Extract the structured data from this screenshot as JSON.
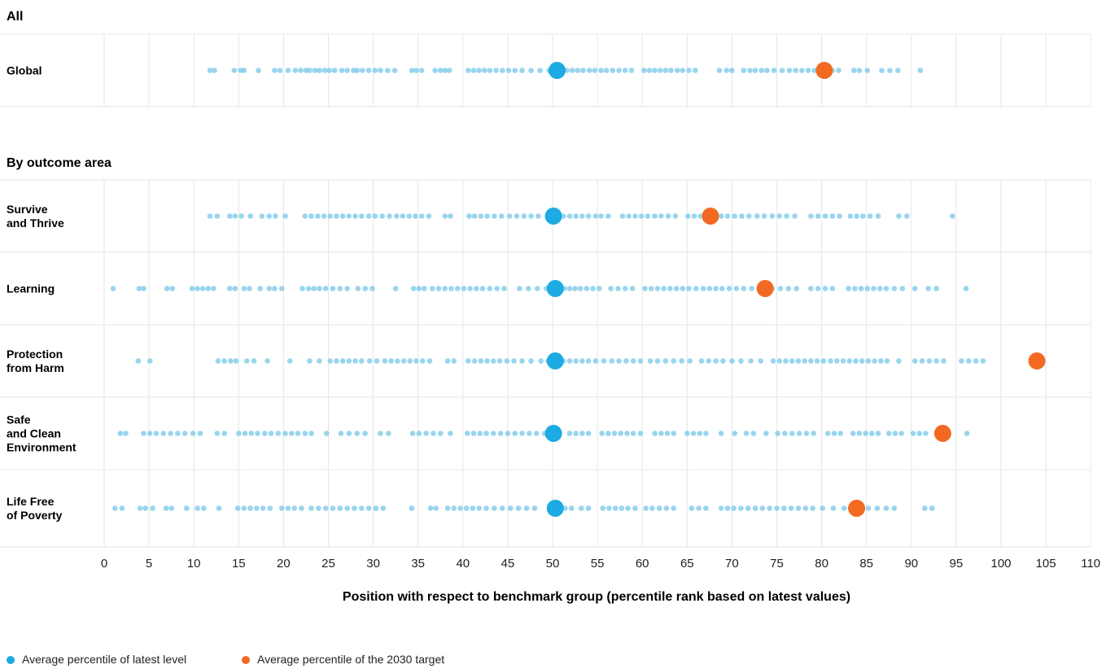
{
  "chart_data": {
    "type": "scatter",
    "xlabel": "Position with respect to benchmark group (percentile rank based on latest values)",
    "xlim": [
      0,
      110
    ],
    "x_ticks": [
      0,
      5,
      10,
      15,
      20,
      25,
      30,
      35,
      40,
      45,
      50,
      55,
      60,
      65,
      70,
      75,
      80,
      85,
      90,
      95,
      100,
      105,
      110
    ],
    "x_tick_labels": [
      "0",
      "5",
      "10",
      "15",
      "20",
      "25",
      "30",
      "35",
      "40",
      "45",
      "50",
      "55",
      "60",
      "65",
      "70",
      "75",
      "80",
      "85",
      "90",
      "95",
      "100",
      "105",
      "110"
    ],
    "grid": "vertical",
    "legend_position": "bottom-left",
    "legend": [
      {
        "label": "Average percentile of latest level",
        "color": "#1cabe2"
      },
      {
        "label": "Average percentile of the 2030 target",
        "color": "#f26a21"
      }
    ],
    "colors": {
      "indicator": "#7fcbea",
      "latest": "#1cabe2",
      "target": "#f26a21",
      "grid": "#e6e6e6"
    },
    "sections": [
      {
        "title": "All",
        "rows": [
          {
            "label_lines": [
              "Global"
            ],
            "average_latest": 50.5,
            "average_target": 80.3,
            "indicators": [
              11.8,
              12.3,
              14.5,
              15.2,
              15.6,
              17.2,
              19.0,
              19.6,
              20.5,
              21.3,
              21.9,
              22.5,
              22.9,
              23.5,
              24.0,
              24.6,
              25.1,
              25.7,
              26.5,
              27.1,
              27.8,
              28.2,
              28.8,
              29.5,
              30.2,
              30.8,
              31.6,
              32.4,
              34.3,
              34.8,
              35.4,
              36.9,
              37.5,
              38.0,
              38.5,
              40.6,
              41.2,
              41.8,
              42.4,
              43.0,
              43.7,
              44.4,
              45.1,
              45.8,
              46.6,
              47.6,
              48.6,
              49.6,
              51.0,
              51.6,
              52.2,
              52.8,
              53.4,
              54.1,
              54.7,
              55.4,
              56.0,
              56.7,
              57.4,
              58.1,
              58.8,
              60.2,
              60.8,
              61.4,
              62.0,
              62.6,
              63.2,
              63.9,
              64.5,
              65.2,
              65.9,
              68.6,
              69.4,
              70.0,
              71.3,
              72.0,
              72.6,
              73.3,
              73.9,
              74.7,
              75.6,
              76.4,
              77.1,
              77.8,
              78.5,
              79.2,
              80.0,
              81.2,
              81.9,
              83.6,
              84.2,
              85.1,
              86.7,
              87.6,
              88.5,
              91.0
            ]
          }
        ]
      },
      {
        "title": "By outcome area",
        "rows": [
          {
            "label_lines": [
              "Survive",
              "and Thrive"
            ],
            "average_latest": 50.1,
            "average_target": 67.6,
            "indicators": [
              11.8,
              12.6,
              14.0,
              14.6,
              15.3,
              16.3,
              17.6,
              18.4,
              19.1,
              20.2,
              22.4,
              23.1,
              23.8,
              24.5,
              25.2,
              25.9,
              26.6,
              27.3,
              28.0,
              28.7,
              29.5,
              30.2,
              31.0,
              31.8,
              32.6,
              33.3,
              34.0,
              34.7,
              35.4,
              36.2,
              38.0,
              38.6,
              40.7,
              41.3,
              42.0,
              42.7,
              43.5,
              44.3,
              45.2,
              46.0,
              46.8,
              47.6,
              48.4,
              51.2,
              51.9,
              52.6,
              53.3,
              54.0,
              54.8,
              55.4,
              56.2,
              57.8,
              58.5,
              59.2,
              59.9,
              60.6,
              61.4,
              62.1,
              62.9,
              63.7,
              65.1,
              65.8,
              66.5,
              68.8,
              69.5,
              70.3,
              71.1,
              71.9,
              72.8,
              73.6,
              74.5,
              75.3,
              76.1,
              77.0,
              78.8,
              79.6,
              80.4,
              81.2,
              82.0,
              83.2,
              83.9,
              84.6,
              85.4,
              86.3,
              88.6,
              89.5,
              94.6
            ]
          },
          {
            "label_lines": [
              "Learning"
            ],
            "average_latest": 50.3,
            "average_target": 73.7,
            "indicators": [
              1.0,
              3.9,
              4.4,
              7.0,
              7.6,
              9.8,
              10.4,
              11.0,
              11.6,
              12.2,
              14.0,
              14.6,
              15.6,
              16.2,
              17.4,
              18.4,
              19.0,
              19.8,
              22.1,
              22.8,
              23.4,
              24.0,
              24.7,
              25.5,
              26.3,
              27.1,
              28.3,
              29.1,
              29.9,
              32.5,
              34.5,
              35.1,
              35.7,
              36.6,
              37.3,
              38.0,
              38.7,
              39.4,
              40.1,
              40.8,
              41.5,
              42.2,
              43.0,
              43.8,
              44.6,
              46.3,
              47.3,
              48.3,
              49.3,
              51.3,
              51.9,
              52.5,
              53.1,
              53.8,
              54.5,
              55.2,
              56.5,
              57.3,
              58.1,
              58.9,
              60.3,
              61.0,
              61.7,
              62.4,
              63.1,
              63.8,
              64.5,
              65.2,
              66.0,
              66.8,
              67.5,
              68.2,
              68.9,
              69.7,
              70.5,
              71.3,
              72.2,
              73.0,
              74.5,
              75.4,
              76.3,
              77.2,
              78.8,
              79.6,
              80.4,
              81.2,
              83.0,
              83.7,
              84.4,
              85.1,
              85.8,
              86.5,
              87.2,
              88.1,
              89.0,
              90.4,
              91.9,
              92.8,
              96.1
            ]
          },
          {
            "label_lines": [
              "Protection",
              "from Harm"
            ],
            "average_latest": 50.3,
            "average_target": 104.0,
            "indicators": [
              3.8,
              5.1,
              12.7,
              13.4,
              14.1,
              14.7,
              15.9,
              16.7,
              18.2,
              20.7,
              22.9,
              24.0,
              25.2,
              25.9,
              26.6,
              27.3,
              28.0,
              28.7,
              29.6,
              30.4,
              31.3,
              32.0,
              32.7,
              33.4,
              34.1,
              34.8,
              35.5,
              36.3,
              38.3,
              39.0,
              40.6,
              41.3,
              42.0,
              42.7,
              43.4,
              44.1,
              44.9,
              45.7,
              46.6,
              47.6,
              48.7,
              49.5,
              51.2,
              51.9,
              52.6,
              53.3,
              54.0,
              54.8,
              55.7,
              56.6,
              57.4,
              58.2,
              59.0,
              59.8,
              60.9,
              61.7,
              62.6,
              63.5,
              64.4,
              65.3,
              66.6,
              67.4,
              68.2,
              69.0,
              70.0,
              71.0,
              72.1,
              73.2,
              74.6,
              75.3,
              76.0,
              76.7,
              77.4,
              78.1,
              78.8,
              79.5,
              80.2,
              81.0,
              81.7,
              82.4,
              83.1,
              83.8,
              84.5,
              85.2,
              85.9,
              86.6,
              87.3,
              88.6,
              90.4,
              91.2,
              92.0,
              92.8,
              93.6,
              95.6,
              96.4,
              97.2,
              98.0
            ]
          },
          {
            "label_lines": [
              "Safe",
              "and Clean",
              "Environment"
            ],
            "average_latest": 50.1,
            "average_target": 93.5,
            "indicators": [
              1.8,
              2.4,
              4.4,
              5.1,
              5.8,
              6.6,
              7.4,
              8.2,
              9.0,
              9.9,
              10.7,
              12.6,
              13.4,
              15.0,
              15.7,
              16.4,
              17.1,
              17.9,
              18.6,
              19.4,
              20.2,
              20.9,
              21.6,
              22.4,
              23.1,
              24.8,
              26.4,
              27.3,
              28.2,
              29.1,
              30.8,
              31.7,
              34.4,
              35.1,
              35.9,
              36.7,
              37.5,
              38.6,
              40.5,
              41.2,
              41.9,
              42.6,
              43.4,
              44.2,
              45.0,
              45.8,
              46.6,
              47.4,
              48.2,
              49.1,
              51.9,
              52.6,
              53.3,
              54.0,
              55.5,
              56.2,
              56.9,
              57.6,
              58.3,
              59.0,
              59.8,
              61.4,
              62.1,
              62.8,
              63.5,
              65.0,
              65.7,
              66.4,
              67.1,
              68.8,
              70.3,
              71.6,
              72.4,
              73.8,
              75.1,
              75.9,
              76.7,
              77.5,
              78.3,
              79.1,
              80.7,
              81.4,
              82.1,
              83.5,
              84.2,
              84.9,
              85.6,
              86.3,
              87.5,
              88.2,
              88.9,
              90.2,
              90.9,
              91.6,
              96.2
            ]
          },
          {
            "label_lines": [
              "Life Free",
              "of Poverty"
            ],
            "average_latest": 50.3,
            "average_target": 83.9,
            "indicators": [
              1.2,
              2.0,
              4.0,
              4.6,
              5.4,
              6.9,
              7.5,
              9.2,
              10.4,
              11.1,
              12.8,
              14.9,
              15.6,
              16.3,
              17.0,
              17.7,
              18.5,
              19.8,
              20.5,
              21.2,
              22.0,
              23.1,
              23.9,
              24.7,
              25.5,
              26.3,
              27.1,
              27.9,
              28.7,
              29.5,
              30.3,
              31.1,
              34.3,
              36.4,
              37.0,
              38.3,
              39.0,
              39.7,
              40.4,
              41.1,
              41.8,
              42.6,
              43.5,
              44.4,
              45.3,
              46.2,
              47.1,
              48.0,
              51.4,
              52.1,
              53.2,
              54.0,
              55.6,
              56.3,
              57.0,
              57.7,
              58.4,
              59.2,
              60.4,
              61.1,
              61.9,
              62.7,
              63.5,
              65.5,
              66.3,
              67.1,
              68.8,
              69.5,
              70.2,
              71.0,
              71.8,
              72.6,
              73.4,
              74.2,
              75.0,
              75.8,
              76.6,
              77.4,
              78.2,
              79.0,
              80.1,
              81.3,
              82.5,
              83.2,
              85.2,
              86.2,
              87.2,
              88.1,
              91.5,
              92.3
            ]
          }
        ]
      }
    ]
  }
}
